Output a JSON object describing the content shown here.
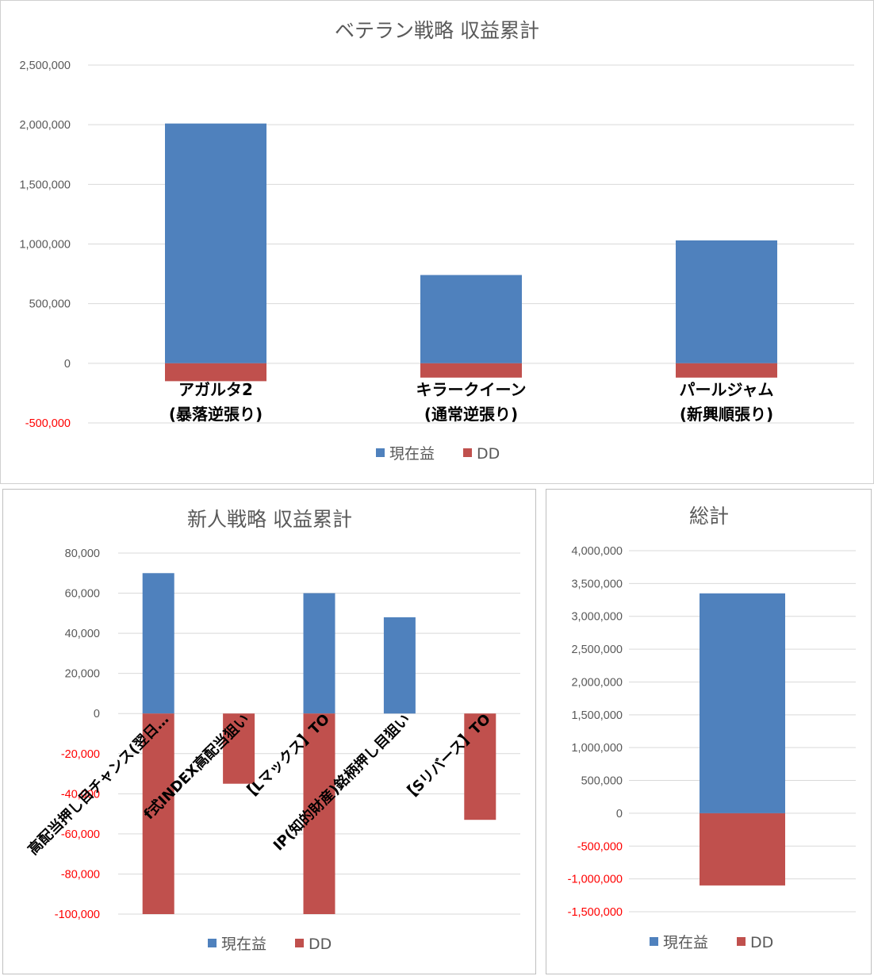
{
  "colors": {
    "current": "#4f81bd",
    "dd": "#c0504d",
    "grid": "#d9d9d9",
    "axis_pos": "#595959",
    "axis_neg": "#ff0000"
  },
  "chart_data": [
    {
      "type": "bar",
      "title": "ベテラン戦略 収益累計",
      "categories": [
        [
          "アガルタ2",
          "(暴落逆張り)"
        ],
        [
          "キラークイーン",
          "(通常逆張り)"
        ],
        [
          "パールジャム",
          "(新興順張り)"
        ]
      ],
      "series": [
        {
          "name": "現在益",
          "values": [
            2010000,
            740000,
            1030000
          ]
        },
        {
          "name": "DD",
          "values": [
            -150000,
            -120000,
            -120000
          ]
        }
      ],
      "ylim": [
        -500000,
        2500000
      ],
      "yticks": [
        "2,500,000",
        "2,000,000",
        "1,500,000",
        "1,000,000",
        "500,000",
        "0",
        "-500,000"
      ],
      "grid": true,
      "legend": "bottom"
    },
    {
      "type": "bar",
      "title": "新人戦略 収益累計",
      "categories": [
        "高配当押し目チャンス(翌日…",
        "f式INDEX高配当狙い",
        "【Lマックス】TO",
        "IP(知的財産)銘柄押し目狙い",
        "【Sリバース】TO"
      ],
      "series": [
        {
          "name": "現在益",
          "values": [
            70000,
            0,
            60000,
            48000,
            0
          ]
        },
        {
          "name": "DD",
          "values": [
            -100000,
            -35000,
            -100000,
            0,
            -53000
          ]
        }
      ],
      "ylim": [
        -100000,
        80000
      ],
      "yticks": [
        "80,000",
        "60,000",
        "40,000",
        "20,000",
        "0",
        "-20,000",
        "-40,000",
        "-60,000",
        "-80,000",
        "-100,000"
      ],
      "grid": true,
      "legend": "bottom"
    },
    {
      "type": "bar",
      "title": "総計",
      "categories": [
        ""
      ],
      "series": [
        {
          "name": "現在益",
          "values": [
            3350000
          ]
        },
        {
          "name": "DD",
          "values": [
            -1100000
          ]
        }
      ],
      "ylim": [
        -1500000,
        4000000
      ],
      "yticks": [
        "4,000,000",
        "3,500,000",
        "3,000,000",
        "2,500,000",
        "2,000,000",
        "1,500,000",
        "1,000,000",
        "500,000",
        "0",
        "-500,000",
        "-1,000,000",
        "-1,500,000"
      ],
      "grid": true,
      "legend": "bottom"
    }
  ]
}
